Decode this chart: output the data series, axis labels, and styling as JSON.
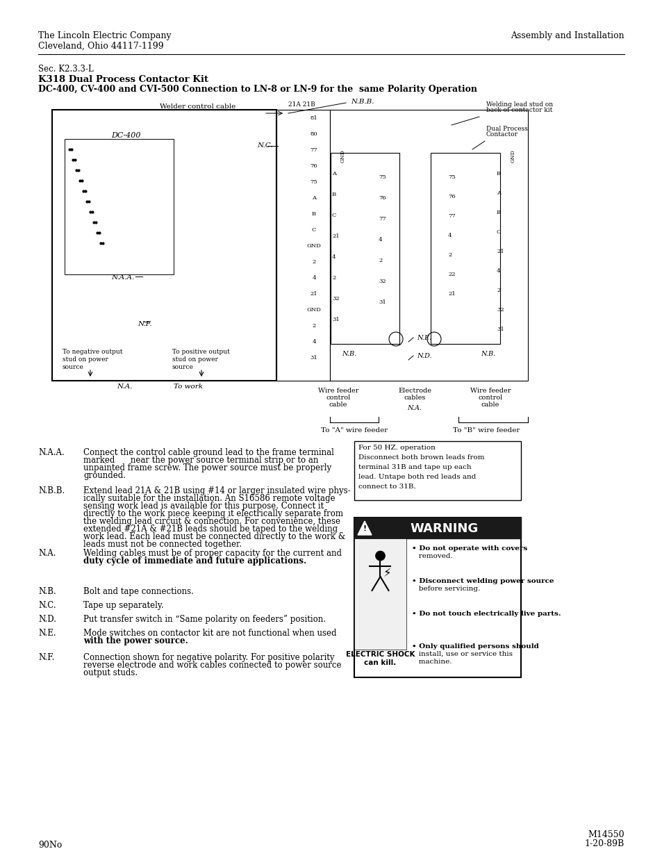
{
  "page_bg": "#ffffff",
  "header_left_line1": "The Lincoln Electric Company",
  "header_left_line2": "Cleveland, Ohio 44117-1199",
  "header_right": "Assembly and Installation",
  "section": "Sec. K2.3.3-L",
  "title_bold1": "K318 Dual Process Contactor Kit",
  "title_bold2": "DC-400, CV-400 and CVI-500 Connection to LN-8 or LN-9 for the  same Polarity Operation",
  "footer_left": "90No",
  "footer_right_line1": "M14550",
  "footer_right_line2": "1-20-89B",
  "notes": [
    {
      "label": "N.A.A.",
      "text": "Connect the control cable ground lead to the frame terminal\nmarked      near the power source terminal strip or to an\nunpainted frame screw. The power source must be properly\ngrounded."
    },
    {
      "label": "N.B.B.",
      "text": "Extend lead 21A & 21B using #14 or larger insulated wire phys-\nically suitable for the installation. An S16586 remote voltage\nsensing work lead is available for this purpose. Connect it\ndirectly to the work piece keeping it electrically separate from\nthe welding lead circuit & connection. For convenience, these\nextended #21A & #21B leads should be taped to the welding\nwork lead. Each lead must be connected directly to the work &\nleads must not be connected together."
    },
    {
      "label": "N.A.",
      "text": "Welding cables must be of proper capacity for the current and\nduty cycle of immediate and future applications.",
      "bold_second_line": true
    },
    {
      "label": "N.B.",
      "text": "Bolt and tape connections."
    },
    {
      "label": "N.C.",
      "text": "Tape up separately."
    },
    {
      "label": "N.D.",
      "text": "Put transfer switch in “Same polarity on feeders” position."
    },
    {
      "label": "N.E.",
      "text": "Mode switches on contactor kit are not functional when used\nwith the power source.",
      "bold_second_line": true
    },
    {
      "label": "N.F.",
      "text": "Connection shown for negative polarity. For positive polarity\nreverse electrode and work cables connected to power source\noutput studs."
    }
  ],
  "warning_box": {
    "title": "WARNING",
    "bullets": [
      "Do not operate with covers\nremoved.",
      "Disconnect welding power source\nbefore servicing.",
      "Do not touch electrically live parts.",
      "Only qualified persons should\ninstall, use or service this\nmachine."
    ],
    "bottom_label_line1": "ELECTRIC SHOCK",
    "bottom_label_line2": "can kill.",
    "box_bg": "#ffffff",
    "header_bg": "#1a1a1a",
    "header_color": "#ffffff"
  },
  "info_box": {
    "text": "For 50 HZ. operation\nDisconnect both brown leads from\nterminal 31B and tape up each\nlead. Untape both red leads and\nconnect to 31B."
  }
}
